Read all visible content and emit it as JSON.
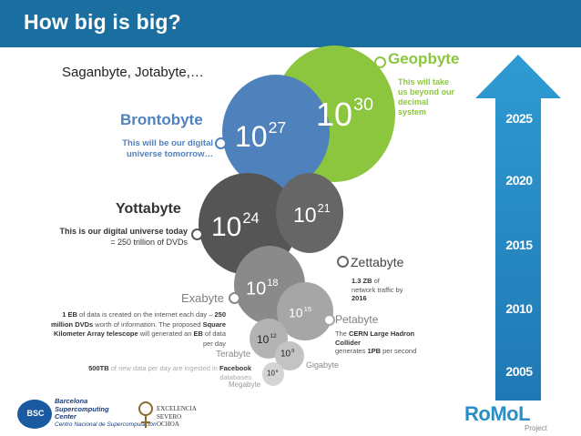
{
  "title": "How big is big?",
  "subtitle": "Saganbyte, Jotabyte,…",
  "bubbles": {
    "geop": {
      "base": "10",
      "exp": "30"
    },
    "bronto": {
      "base": "10",
      "exp": "27"
    },
    "yotta": {
      "base": "10",
      "exp": "24"
    },
    "zetta": {
      "base": "10",
      "exp": "21"
    },
    "exa": {
      "base": "10",
      "exp": "18"
    },
    "peta": {
      "base": "10",
      "exp": "15"
    },
    "tera": {
      "base": "10",
      "exp": "12"
    },
    "giga": {
      "base": "10",
      "exp": "9"
    },
    "mega": {
      "base": "10",
      "exp": "6"
    }
  },
  "labels": {
    "geopbyte": "Geopbyte",
    "brontobyte": "Brontobyte",
    "yottabyte": "Yottabyte",
    "zettabyte": "Zettabyte",
    "exabyte": "Exabyte",
    "petabyte": "Petabyte",
    "terabyte": "Terabyte",
    "gigabyte": "Gigabyte",
    "megabyte": "Megabyte"
  },
  "notes": {
    "geop_1": "This will take",
    "geop_2": "us beyond our",
    "geop_3": "decimal",
    "geop_4": "system",
    "bronto_1": "This will be our digital",
    "bronto_2": "universe tomorrow…",
    "yotta_bold": "This is our digital universe today",
    "yotta_2": "= 250 trillion of DVDs",
    "zetta_bold": "1.3 ZB",
    "zetta_1": " of",
    "zetta_2": "network traffic by",
    "zetta_3": "2016",
    "exa_bold1": "1 EB",
    "exa_t1": " of data is created on the internet each day – ",
    "exa_bold2": "250",
    "exa_bold3": "million DVDs",
    "exa_t2": " worth of information. The proposed ",
    "exa_bold4": "Square",
    "exa_bold5": "Kilometer Array telescope",
    "exa_t3": " will generated an ",
    "exa_bold6": "EB",
    "exa_t4": " of data",
    "exa_t5": "per day",
    "peta_1": "The ",
    "peta_bold1": "CERN Large Hadron",
    "peta_bold2": "Collider",
    "peta_2": "generates ",
    "peta_bold3": "1PB",
    "peta_3": " per second",
    "tera_bold": "500TB",
    "tera_1": " of new data per day are ingested in ",
    "tera_bold2": "Facebook",
    "tera_2": "databases"
  },
  "years": [
    "2025",
    "2020",
    "2015",
    "2010",
    "2005"
  ],
  "logos": {
    "bsc_badge": "BSC",
    "bsc_1": "Barcelona",
    "bsc_2": "Supercomputing",
    "bsc_3": "Center",
    "bsc_4": "Centro Nacional de Supercomputación",
    "severo_1": "EXCELENCIA",
    "severo_2": "SEVERO",
    "severo_3": "OCHOA",
    "romol": "RoMoL",
    "romol_sub": "Project"
  },
  "colors": {
    "title_bar": "#1a6fa0",
    "geop": "#8cc63f",
    "bronto": "#4f81bd",
    "yotta": "#555555",
    "zetta": "#666666",
    "small": "#8a8a8a",
    "arrow": "#2a8fc7",
    "label_grey": "#7f7f7f"
  }
}
